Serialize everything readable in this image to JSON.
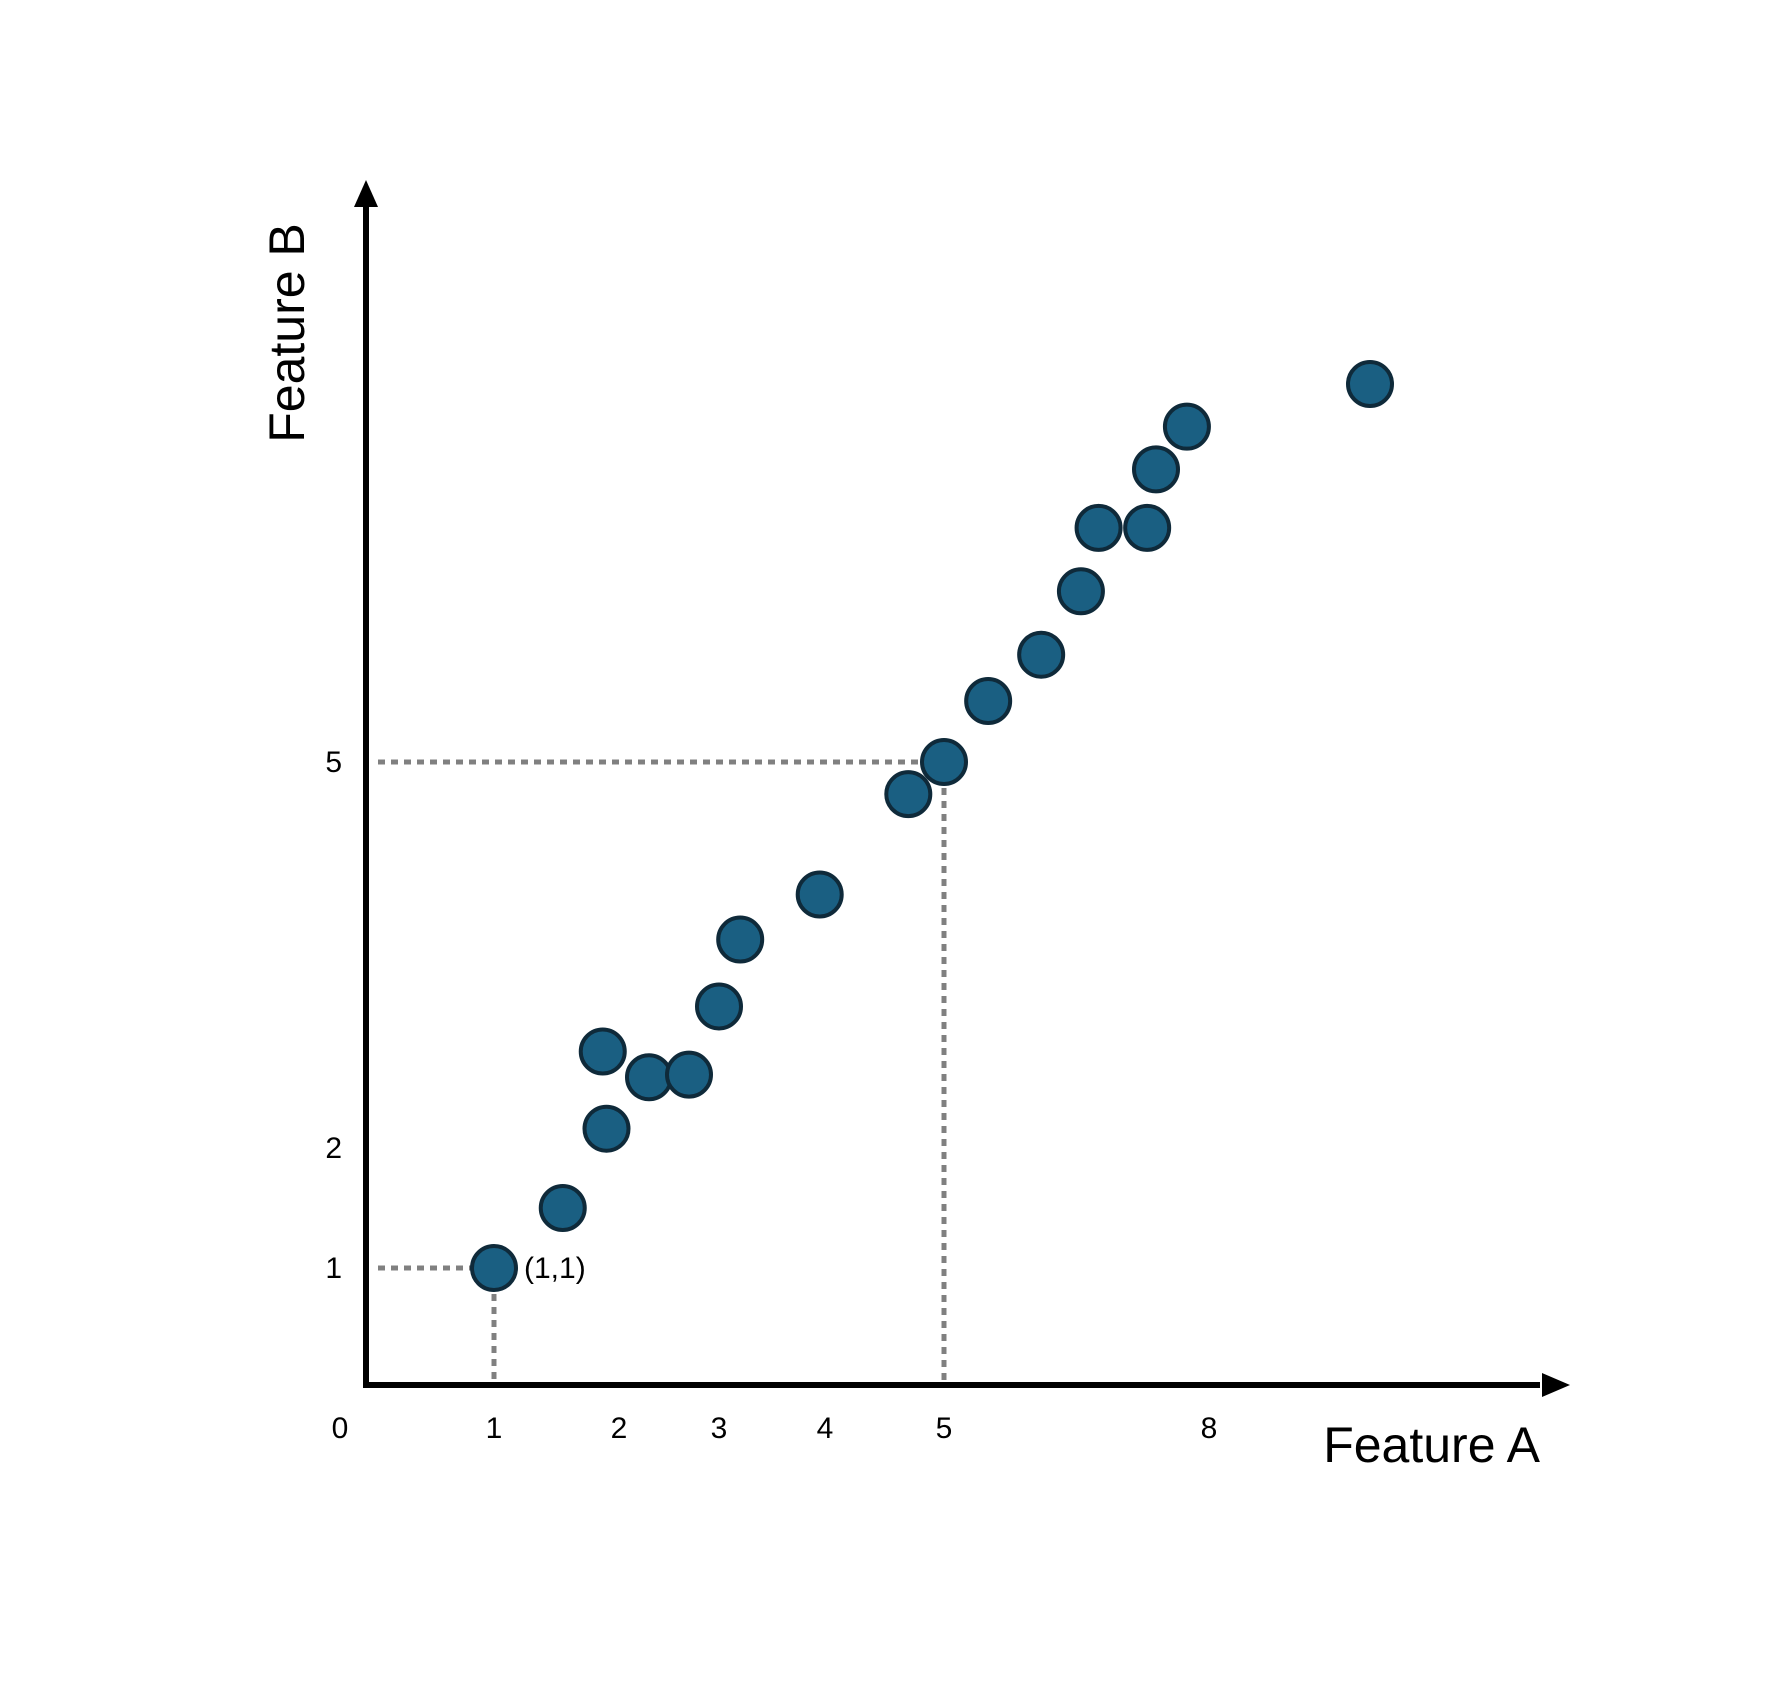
{
  "chart_data": {
    "type": "scatter",
    "xlabel": "Feature A",
    "ylabel": "Feature B",
    "x_ticks": [
      0,
      1,
      2,
      3,
      4,
      5,
      8
    ],
    "y_ticks": [
      1,
      2,
      5
    ],
    "point_color": "#1a5f82",
    "point_edge_color": "#0f2a3a",
    "guide_color": "#808080",
    "points": [
      {
        "x": 1.0,
        "y": 1.0
      },
      {
        "x": 1.55,
        "y": 1.5
      },
      {
        "x": 1.9,
        "y": 2.15
      },
      {
        "x": 1.87,
        "y": 2.75
      },
      {
        "x": 2.3,
        "y": 2.55
      },
      {
        "x": 2.7,
        "y": 2.57
      },
      {
        "x": 3.0,
        "y": 3.1
      },
      {
        "x": 3.2,
        "y": 3.62
      },
      {
        "x": 3.95,
        "y": 3.97
      },
      {
        "x": 4.7,
        "y": 4.75
      },
      {
        "x": 5.0,
        "y": 5.0
      },
      {
        "x": 5.5,
        "y": 5.5
      },
      {
        "x": 6.1,
        "y": 5.88
      },
      {
        "x": 6.55,
        "y": 6.4
      },
      {
        "x": 6.75,
        "y": 6.92
      },
      {
        "x": 7.3,
        "y": 6.92
      },
      {
        "x": 7.4,
        "y": 7.4
      },
      {
        "x": 7.75,
        "y": 7.75
      },
      {
        "x": 8.45,
        "y": 8.1
      }
    ],
    "annotations": [
      {
        "label": "(1,1)",
        "x": 1,
        "y": 1
      }
    ],
    "guides": [
      {
        "x": 1,
        "y": 1
      },
      {
        "x": 5,
        "y": 5
      }
    ],
    "grid": false,
    "legend": "none"
  }
}
